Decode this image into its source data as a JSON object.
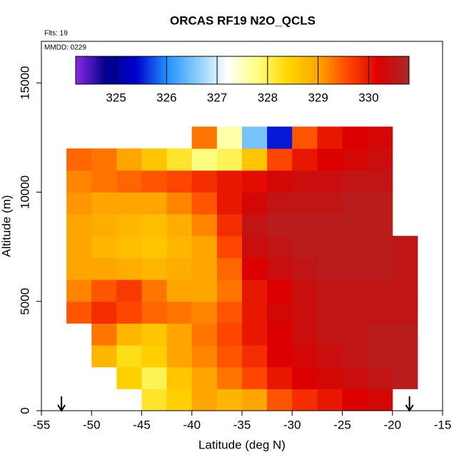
{
  "chart_data": {
    "type": "heatmap",
    "title": "ORCAS RF19 N2O_QCLS",
    "annotations": [
      "Flts: 19",
      "MMDD: 0229"
    ],
    "xlabel": "Latitude (deg N)",
    "ylabel": "Altitude (m)",
    "xlim": [
      -55,
      -15
    ],
    "xticks": [
      -55,
      -50,
      -45,
      -40,
      -35,
      -30,
      -25,
      -20,
      -15
    ],
    "ylim": [
      0,
      16900
    ],
    "yticks": [
      0,
      5000,
      10000,
      15000
    ],
    "x_edges": [
      -52.5,
      -50,
      -47.5,
      -45,
      -42.5,
      -40,
      -37.5,
      -35,
      -32.5,
      -30,
      -27.5,
      -25,
      -22.5,
      -20,
      -17.5
    ],
    "y_edges": [
      0,
      1000,
      2000,
      3000,
      4000,
      5000,
      6000,
      7000,
      8000,
      9000,
      10000,
      11000,
      12000,
      13000
    ],
    "z": [
      [
        null,
        null,
        null,
        328.2,
        328.5,
        329,
        328.8,
        329,
        329.5,
        329.8,
        330,
        330.2,
        330.3,
        null
      ],
      [
        null,
        null,
        328.5,
        328,
        328.6,
        329,
        329.3,
        329.6,
        330,
        330.2,
        330.3,
        330.4,
        330.5,
        330.6
      ],
      [
        null,
        328.8,
        328.3,
        328.5,
        329,
        329.2,
        329.5,
        329.8,
        330.2,
        330.3,
        330.4,
        330.5,
        330.6,
        330.6
      ],
      [
        null,
        329.3,
        328.8,
        328.6,
        329,
        329.3,
        329.6,
        330,
        330.2,
        330.4,
        330.5,
        330.5,
        330.6,
        330.6
      ],
      [
        329.5,
        329.8,
        329.6,
        329.4,
        329.3,
        329.2,
        329.5,
        330,
        330.3,
        330.4,
        330.5,
        330.5,
        330.5,
        330.5
      ],
      [
        329.2,
        329.5,
        329.7,
        329.3,
        329,
        329,
        329.3,
        330,
        330.2,
        330.4,
        330.5,
        330.5,
        330.5,
        330.5
      ],
      [
        329,
        329,
        328.9,
        328.8,
        328.9,
        329,
        329.4,
        330.2,
        330.4,
        330.5,
        330.6,
        330.6,
        330.6,
        330.5
      ],
      [
        329,
        328.8,
        328.7,
        328.6,
        328.8,
        329,
        329.6,
        330.4,
        330.5,
        330.6,
        330.6,
        330.6,
        330.6,
        330.5
      ],
      [
        329,
        328.9,
        328.8,
        328.7,
        328.9,
        329.2,
        329.8,
        330.5,
        330.6,
        330.6,
        330.6,
        330.6,
        330.6,
        null
      ],
      [
        329.1,
        329,
        329,
        329,
        329.2,
        329.5,
        330,
        330.3,
        330.5,
        330.5,
        330.5,
        330.6,
        330.6,
        null
      ],
      [
        329.2,
        329.3,
        329.4,
        329.5,
        329.6,
        329.8,
        330,
        330.1,
        330.3,
        330.4,
        330.4,
        330.5,
        330.5,
        null
      ],
      [
        329.4,
        329.3,
        329,
        328.6,
        328.2,
        327.8,
        328,
        328.6,
        329.6,
        330,
        330.2,
        330.3,
        330.4,
        null
      ],
      [
        null,
        null,
        null,
        null,
        null,
        329.3,
        327.6,
        326.5,
        325.5,
        329.5,
        330,
        330.2,
        330.3,
        null
      ]
    ],
    "colorbar": {
      "lim": [
        324.2,
        330.8
      ],
      "ticks": [
        325,
        326,
        327,
        328,
        329,
        330
      ],
      "colors": [
        "#8a2be2",
        "#00008b",
        "#0000cd",
        "#1e90ff",
        "#87cefa",
        "#ffffff",
        "#ffff80",
        "#ffd700",
        "#ffa500",
        "#ff4500",
        "#dd0000",
        "#a52a2a"
      ]
    },
    "arrows_x": [
      -53,
      -18.3
    ]
  }
}
